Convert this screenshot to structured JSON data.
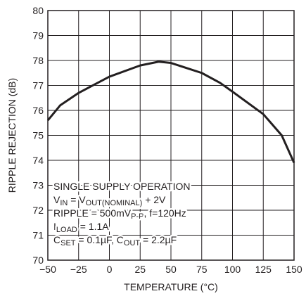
{
  "chart_data": {
    "type": "line",
    "xlabel": "TEMPERATURE (°C)",
    "ylabel": "RIPPLE REJECTION (dB)",
    "x": [
      -50,
      -40,
      -25,
      0,
      25,
      40,
      50,
      75,
      90,
      100,
      125,
      140,
      150
    ],
    "values": [
      75.6,
      76.2,
      76.7,
      77.35,
      77.8,
      77.95,
      77.9,
      77.5,
      77.1,
      76.75,
      75.85,
      75.0,
      73.9
    ],
    "color": "#231f20",
    "xlim": [
      -50,
      150
    ],
    "xticks": [
      {
        "value": -50,
        "label": "−50"
      },
      {
        "value": -25,
        "label": "−25"
      },
      0,
      25,
      50,
      75,
      100,
      125,
      150
    ],
    "ylim": [
      70,
      80
    ],
    "yticks": [
      70,
      71,
      72,
      73,
      74,
      75,
      76,
      77,
      78,
      79,
      80
    ],
    "grid": true,
    "annotation": [
      [
        "SINGLE SUPPLY OPERATION"
      ],
      [
        "V",
        "IN",
        " = V",
        "OUT(NOMINAL)",
        " + 2V"
      ],
      [
        "RIPPLE = 500mV",
        "P-P",
        ", f=120Hz"
      ],
      [
        "I",
        "LOAD",
        " = 1.1A"
      ],
      [
        "C",
        "SET",
        " = 0.1µF, C",
        "OUT",
        " = 2.2µF"
      ]
    ]
  }
}
